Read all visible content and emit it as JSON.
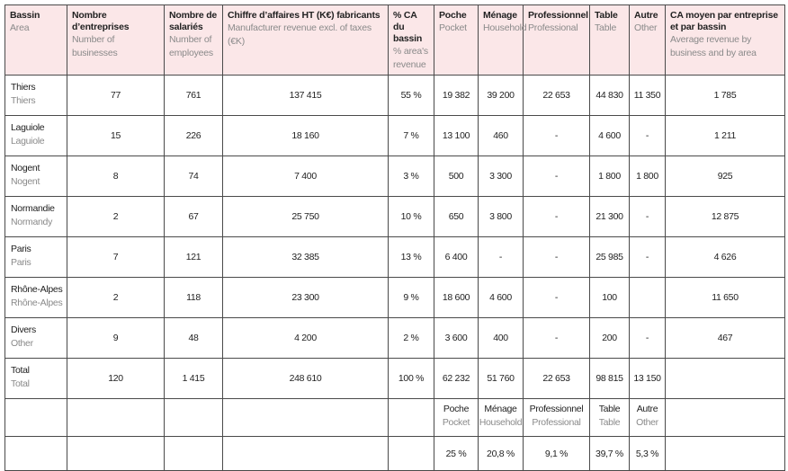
{
  "headers": [
    {
      "fr": "Bassin",
      "en": "Area"
    },
    {
      "fr": "Nombre d’entreprises",
      "en": "Number of businesses"
    },
    {
      "fr": "Nombre de salariés",
      "en": "Number of employees"
    },
    {
      "fr": "Chiffre d’affaires HT (K€) fabricants",
      "en": "Manufacturer revenue excl. of taxes (€K)"
    },
    {
      "fr": "% CA du bassin",
      "en": "% area's revenue"
    },
    {
      "fr": "Poche",
      "en": "Pocket"
    },
    {
      "fr": "Ménage",
      "en": "Household"
    },
    {
      "fr": "Professionnel",
      "en": "Professional"
    },
    {
      "fr": "Table",
      "en": "Table"
    },
    {
      "fr": "Autre",
      "en": "Other"
    },
    {
      "fr": "CA moyen par entreprise et par bassin",
      "en": "Average revenue by business and by area"
    }
  ],
  "rows": [
    {
      "area_fr": "Thiers",
      "area_en": "Thiers",
      "cells": [
        "77",
        "761",
        "137 415",
        "55 %",
        "19 382",
        "39 200",
        "22 653",
        "44 830",
        "11 350",
        "1 785"
      ]
    },
    {
      "area_fr": "Laguiole",
      "area_en": "Laguiole",
      "cells": [
        "15",
        "226",
        "18 160",
        "7 %",
        "13 100",
        "460",
        "-",
        "4 600",
        "-",
        "1 211"
      ]
    },
    {
      "area_fr": "Nogent",
      "area_en": "Nogent",
      "cells": [
        "8",
        "74",
        "7 400",
        "3 %",
        "500",
        "3 300",
        "-",
        "1 800",
        "1 800",
        "925"
      ]
    },
    {
      "area_fr": "Normandie",
      "area_en": "Normandy",
      "cells": [
        "2",
        "67",
        "25 750",
        "10 %",
        "650",
        "3 800",
        "-",
        "21 300",
        "-",
        "12 875"
      ]
    },
    {
      "area_fr": "Paris",
      "area_en": "Paris",
      "cells": [
        "7",
        "121",
        "32 385",
        "13 %",
        "6 400",
        "-",
        "-",
        "25 985",
        "-",
        "4 626"
      ]
    },
    {
      "area_fr": "Rhône-Alpes",
      "area_en": "Rhône-Alpes",
      "cells": [
        "2",
        "118",
        "23 300",
        "9 %",
        "18 600",
        "4 600",
        "-",
        "100",
        "",
        "11 650"
      ]
    },
    {
      "area_fr": "Divers",
      "area_en": "Other",
      "cells": [
        "9",
        "48",
        "4 200",
        "2 %",
        "3 600",
        "400",
        "-",
        "200",
        "-",
        "467"
      ]
    },
    {
      "area_fr": "Total",
      "area_en": "Total",
      "cells": [
        "120",
        "1 415",
        "248 610",
        "100 %",
        "62 232",
        "51 760",
        "22 653",
        "98 815",
        "13 150",
        ""
      ]
    }
  ],
  "subheader": [
    {
      "fr": "Poche",
      "en": "Pocket"
    },
    {
      "fr": "Ménage",
      "en": "Household"
    },
    {
      "fr": "Professionnel",
      "en": "Professional"
    },
    {
      "fr": "Table",
      "en": "Table"
    },
    {
      "fr": "Autre",
      "en": "Other"
    }
  ],
  "share_percentages": [
    "25 %",
    "20,8 %",
    "9,1 %",
    "39,7 %",
    "5,3 %"
  ]
}
